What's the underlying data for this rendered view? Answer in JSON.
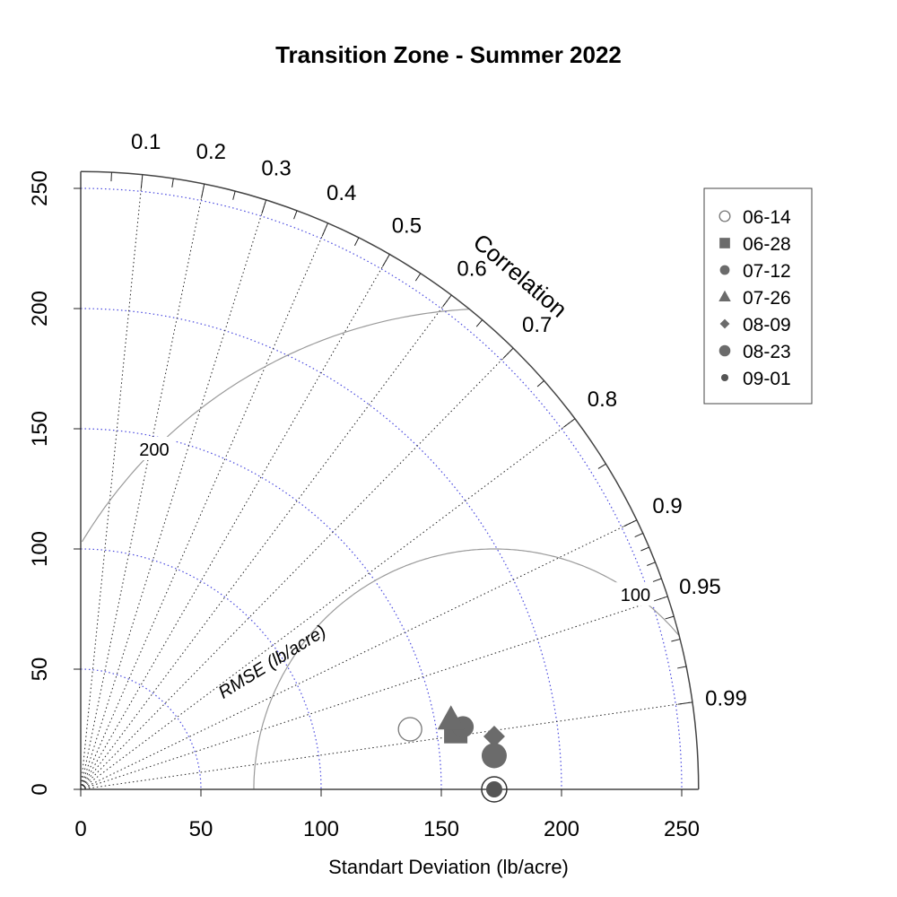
{
  "chart_data": {
    "type": "scatter",
    "subtype": "taylor-diagram",
    "title": "Transition Zone - Summer 2022",
    "xlabel": "Standart Deviation (lb/acre)",
    "rmse_label": "RMSE (lb/acre)",
    "correlation_label": "Correlation",
    "sd_range": [
      0,
      257
    ],
    "sd_ticks": [
      "0",
      "50",
      "100",
      "150",
      "200",
      "250"
    ],
    "correlation_ticks": [
      "0.1",
      "0.2",
      "0.3",
      "0.4",
      "0.5",
      "0.6",
      "0.7",
      "0.8",
      "0.9",
      "0.95",
      "0.99"
    ],
    "rmse_contours": [
      "100",
      "200"
    ],
    "reference_sd": 172,
    "grid": true,
    "legend_position": "top-right",
    "series": [
      {
        "name": "06-14",
        "symbol": "open-circle",
        "x": 137,
        "y": 25
      },
      {
        "name": "06-28",
        "symbol": "square",
        "x": 156,
        "y": 24
      },
      {
        "name": "07-12",
        "symbol": "circle",
        "x": 159,
        "y": 26
      },
      {
        "name": "07-26",
        "symbol": "triangle",
        "x": 154,
        "y": 29
      },
      {
        "name": "08-09",
        "symbol": "diamond",
        "x": 172,
        "y": 22
      },
      {
        "name": "08-23",
        "symbol": "circle-large",
        "x": 172,
        "y": 14
      },
      {
        "name": "09-01",
        "symbol": "circle-small",
        "x": 172,
        "y": 0
      }
    ],
    "colors": {
      "marker": "#6b6b6b",
      "ref_marker": "#555555",
      "sd_arcs": "#4a4adf",
      "rmse_arcs": "#9a9a9a",
      "frame": "#444444"
    }
  }
}
